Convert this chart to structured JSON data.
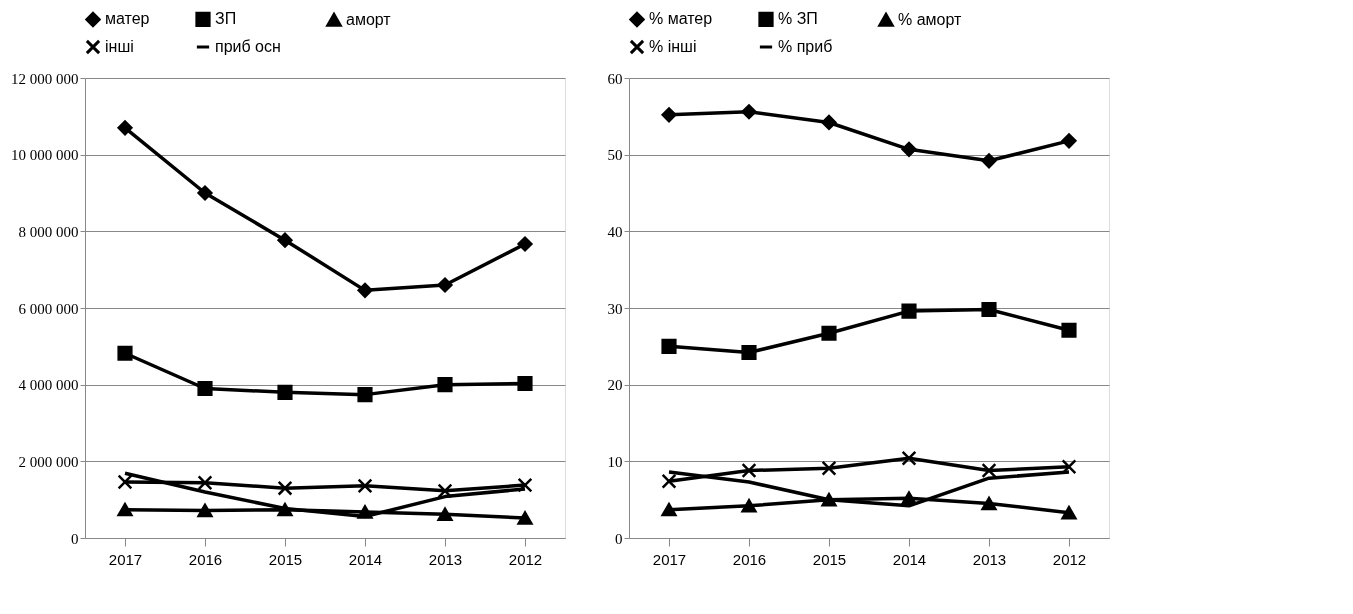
{
  "chart_data": [
    {
      "type": "line",
      "categories": [
        "2017",
        "2016",
        "2015",
        "2014",
        "2013",
        "2012"
      ],
      "ylim": [
        0,
        12000000
      ],
      "yticks": [
        {
          "value": 0,
          "label": "0"
        },
        {
          "value": 2000000,
          "label": "2 000 000"
        },
        {
          "value": 4000000,
          "label": "4 000 000"
        },
        {
          "value": 6000000,
          "label": "6 000 000"
        },
        {
          "value": 8000000,
          "label": "8 000 000"
        },
        {
          "value": 10000000,
          "label": "10 000 000"
        },
        {
          "value": 12000000,
          "label": "12 000 000"
        }
      ],
      "grid": "y",
      "legend": "top",
      "line_style": "solid",
      "series": [
        {
          "name": "матер",
          "color": "#000000",
          "marker": "diamond",
          "values": [
            10700000,
            9000000,
            7770000,
            6460000,
            6600000,
            7670000
          ]
        },
        {
          "name": "ЗП",
          "color": "#000000",
          "marker": "square",
          "values": [
            4820000,
            3900000,
            3800000,
            3740000,
            4000000,
            4030000
          ]
        },
        {
          "name": "аморт",
          "color": "#000000",
          "marker": "triangle",
          "values": [
            740000,
            720000,
            740000,
            680000,
            620000,
            520000
          ]
        },
        {
          "name": "інші",
          "color": "#000000",
          "marker": "cross",
          "values": [
            1460000,
            1440000,
            1300000,
            1360000,
            1230000,
            1380000
          ]
        },
        {
          "name": "приб осн",
          "color": "#000000",
          "marker": "none",
          "values": [
            1690000,
            1200000,
            770000,
            560000,
            1080000,
            1280000
          ]
        }
      ]
    },
    {
      "type": "line",
      "categories": [
        "2017",
        "2016",
        "2015",
        "2014",
        "2013",
        "2012"
      ],
      "ylim": [
        0,
        60
      ],
      "yticks": [
        0,
        10,
        20,
        30,
        40,
        50,
        60
      ],
      "grid": "y",
      "legend": "top",
      "line_style": "solid",
      "series": [
        {
          "name": "% матер",
          "color": "#000000",
          "marker": "diamond",
          "values": [
            55.2,
            55.6,
            54.2,
            50.7,
            49.2,
            51.8
          ]
        },
        {
          "name": "% ЗП",
          "color": "#000000",
          "marker": "square",
          "values": [
            25.0,
            24.2,
            26.7,
            29.6,
            29.8,
            27.1
          ]
        },
        {
          "name": "% аморт",
          "color": "#000000",
          "marker": "triangle",
          "values": [
            3.7,
            4.2,
            5.0,
            5.2,
            4.5,
            3.3
          ]
        },
        {
          "name": "% інші",
          "color": "#000000",
          "marker": "cross",
          "values": [
            7.4,
            8.8,
            9.1,
            10.4,
            8.8,
            9.3
          ]
        },
        {
          "name": "% приб",
          "color": "#000000",
          "marker": "none",
          "values": [
            8.6,
            7.3,
            5.0,
            4.2,
            7.8,
            8.6
          ]
        }
      ]
    }
  ]
}
